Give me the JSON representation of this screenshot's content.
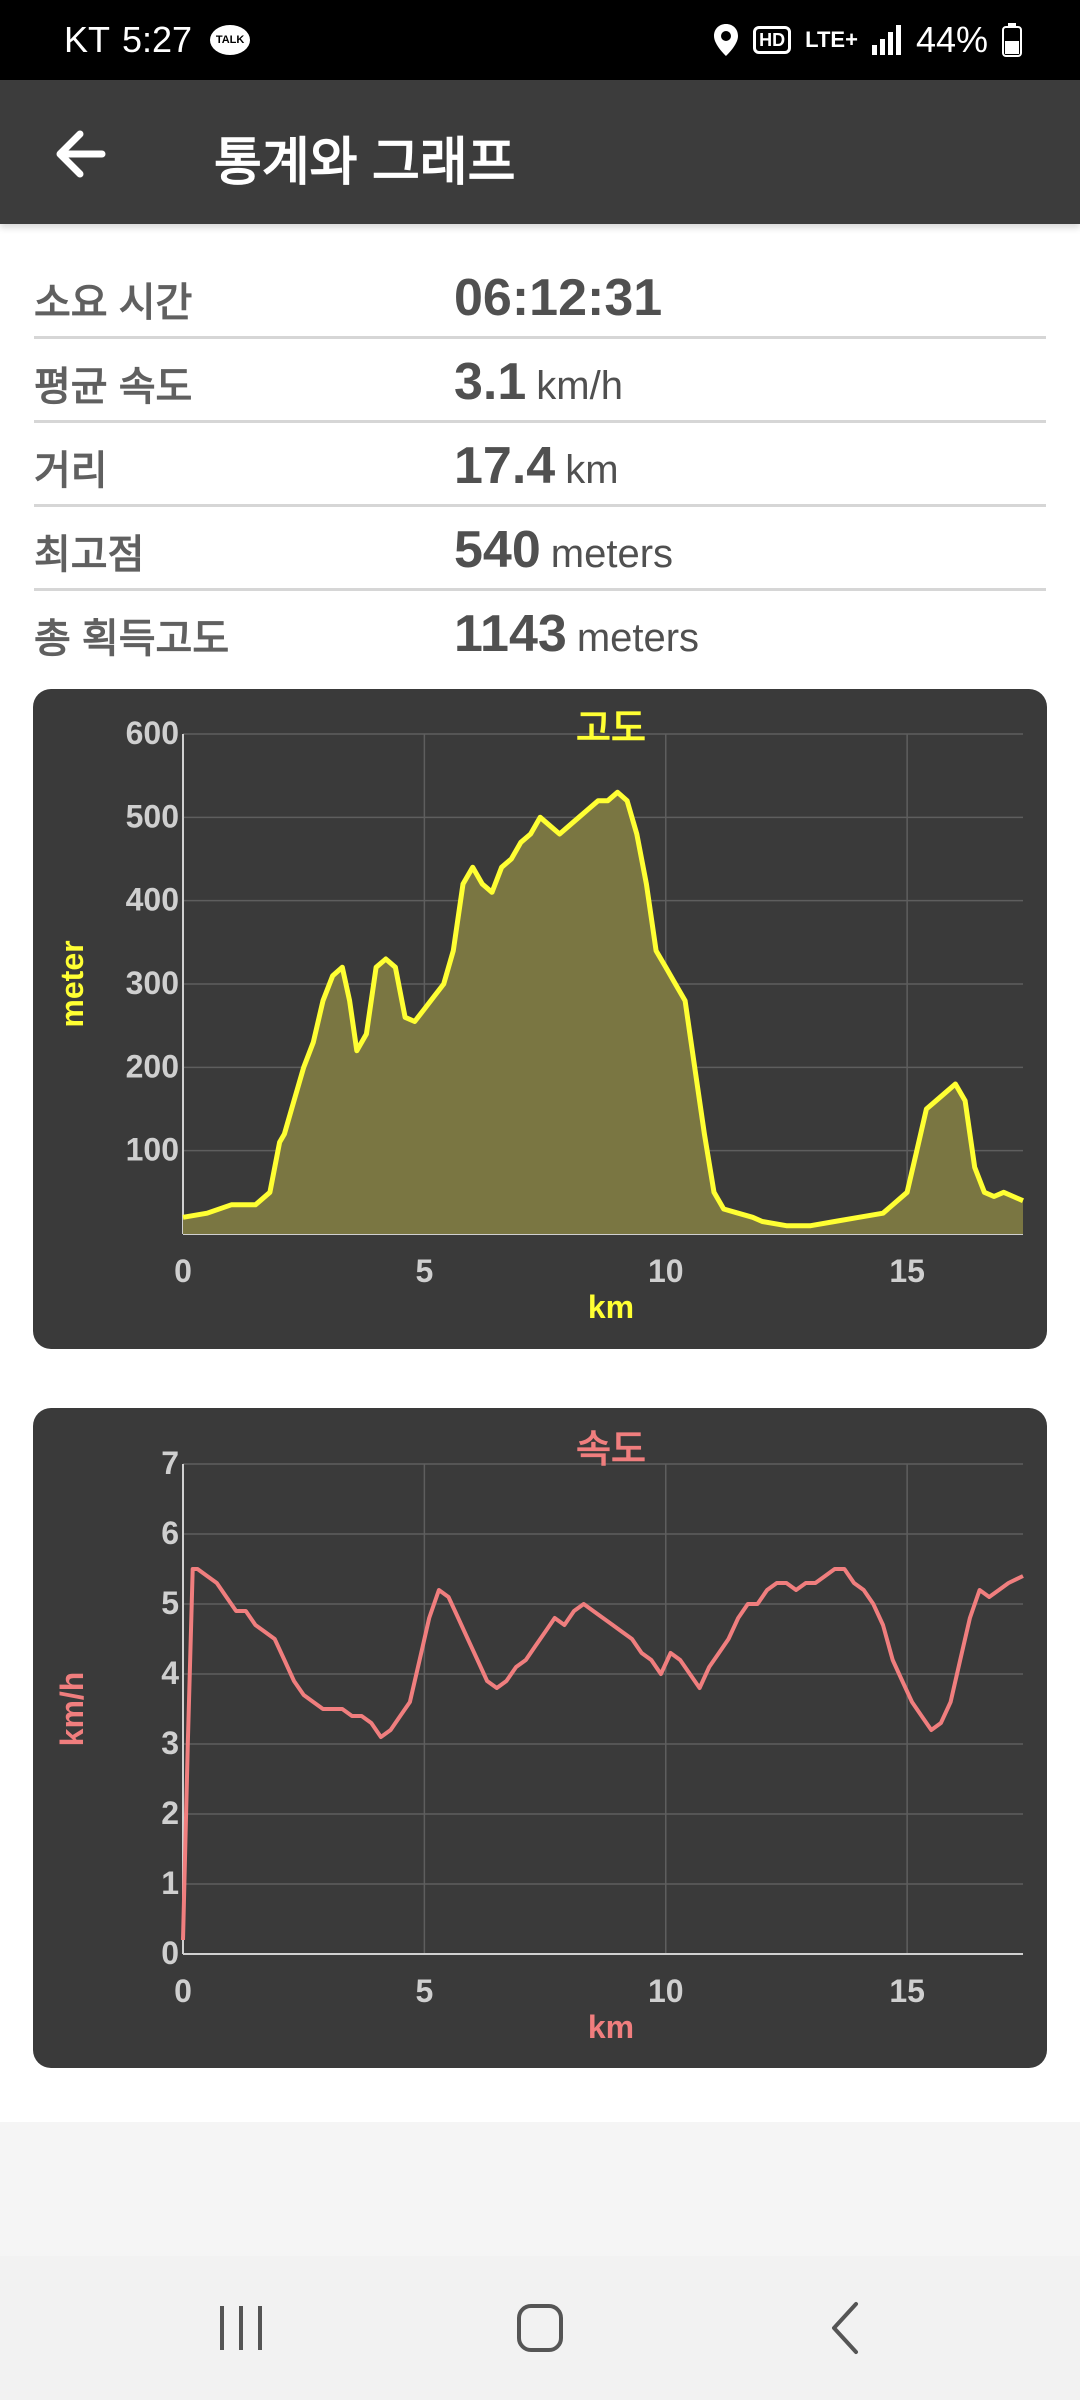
{
  "status": {
    "carrier": "KT",
    "time": "5:27",
    "talk": "TALK",
    "hd": "HD",
    "network": "LTE+",
    "battery": "44%"
  },
  "app_bar": {
    "title": "통계와 그래프"
  },
  "stats": [
    {
      "label": "소요 시간",
      "value": "06:12:31",
      "unit": ""
    },
    {
      "label": "평균 속도",
      "value": "3.1",
      "unit": "km/h"
    },
    {
      "label": "거리",
      "value": "17.4",
      "unit": "km"
    },
    {
      "label": "최고점",
      "value": "540",
      "unit": "meters"
    },
    {
      "label": "총 획득고도",
      "value": "1143",
      "unit": "meters"
    }
  ],
  "colors": {
    "elevation": "#ffff33",
    "speed": "#f07e7e",
    "card": "#3a3a3a",
    "appbar": "#3c3c3c"
  },
  "chart_data": [
    {
      "type": "area",
      "title": "고도",
      "xlabel": "km",
      "ylabel": "meter",
      "xlim": [
        0,
        17.4
      ],
      "ylim": [
        0,
        600
      ],
      "xticks": [
        0,
        5,
        10,
        15
      ],
      "yticks": [
        100,
        200,
        300,
        400,
        500,
        600
      ],
      "grid": true,
      "x": [
        0,
        0.5,
        1,
        1.5,
        1.8,
        2,
        2.1,
        2.3,
        2.5,
        2.7,
        2.9,
        3.1,
        3.3,
        3.45,
        3.6,
        3.8,
        4.0,
        4.2,
        4.4,
        4.6,
        4.8,
        5.0,
        5.2,
        5.4,
        5.6,
        5.8,
        6.0,
        6.2,
        6.4,
        6.6,
        6.8,
        7.0,
        7.2,
        7.4,
        7.6,
        7.8,
        8.0,
        8.2,
        8.4,
        8.6,
        8.8,
        9.0,
        9.2,
        9.4,
        9.6,
        9.8,
        10.0,
        10.2,
        10.4,
        10.6,
        10.8,
        11.0,
        11.2,
        11.5,
        11.8,
        12.0,
        12.5,
        13.0,
        13.5,
        14.0,
        14.5,
        15.0,
        15.2,
        15.4,
        15.6,
        15.8,
        16.0,
        16.2,
        16.4,
        16.6,
        16.8,
        17.0,
        17.2,
        17.4
      ],
      "y": [
        20,
        25,
        35,
        35,
        50,
        110,
        120,
        160,
        200,
        230,
        280,
        310,
        320,
        280,
        220,
        240,
        320,
        330,
        320,
        260,
        255,
        270,
        285,
        300,
        340,
        420,
        440,
        420,
        410,
        440,
        450,
        470,
        480,
        500,
        490,
        480,
        490,
        500,
        510,
        520,
        520,
        530,
        520,
        480,
        420,
        340,
        320,
        300,
        280,
        200,
        120,
        50,
        30,
        25,
        20,
        15,
        10,
        10,
        15,
        20,
        25,
        50,
        100,
        150,
        160,
        170,
        180,
        160,
        80,
        50,
        45,
        50,
        45,
        40
      ]
    },
    {
      "type": "line",
      "title": "속도",
      "xlabel": "km",
      "ylabel": "km/h",
      "xlim": [
        0,
        17.4
      ],
      "ylim": [
        0,
        7
      ],
      "xticks": [
        0,
        5,
        10,
        15
      ],
      "yticks": [
        0,
        1,
        2,
        3,
        4,
        5,
        6,
        7
      ],
      "grid": true,
      "x": [
        0,
        0.1,
        0.2,
        0.3,
        0.5,
        0.7,
        0.9,
        1.1,
        1.3,
        1.5,
        1.7,
        1.9,
        2.1,
        2.3,
        2.5,
        2.7,
        2.9,
        3.1,
        3.3,
        3.5,
        3.7,
        3.9,
        4.1,
        4.3,
        4.5,
        4.7,
        4.9,
        5.1,
        5.3,
        5.5,
        5.7,
        5.9,
        6.1,
        6.3,
        6.5,
        6.7,
        6.9,
        7.1,
        7.3,
        7.5,
        7.7,
        7.9,
        8.1,
        8.3,
        8.5,
        8.7,
        8.9,
        9.1,
        9.3,
        9.5,
        9.7,
        9.9,
        10.1,
        10.3,
        10.5,
        10.7,
        10.9,
        11.1,
        11.3,
        11.5,
        11.7,
        11.9,
        12.1,
        12.3,
        12.5,
        12.7,
        12.9,
        13.1,
        13.3,
        13.5,
        13.7,
        13.9,
        14.1,
        14.3,
        14.5,
        14.7,
        14.9,
        15.1,
        15.3,
        15.5,
        15.7,
        15.9,
        16.1,
        16.3,
        16.5,
        16.7,
        16.9,
        17.1,
        17.4
      ],
      "y": [
        0.2,
        3.0,
        5.5,
        5.5,
        5.4,
        5.3,
        5.1,
        4.9,
        4.9,
        4.7,
        4.6,
        4.5,
        4.2,
        3.9,
        3.7,
        3.6,
        3.5,
        3.5,
        3.5,
        3.4,
        3.4,
        3.3,
        3.1,
        3.2,
        3.4,
        3.6,
        4.2,
        4.8,
        5.2,
        5.1,
        4.8,
        4.5,
        4.2,
        3.9,
        3.8,
        3.9,
        4.1,
        4.2,
        4.4,
        4.6,
        4.8,
        4.7,
        4.9,
        5.0,
        4.9,
        4.8,
        4.7,
        4.6,
        4.5,
        4.3,
        4.2,
        4.0,
        4.3,
        4.2,
        4.0,
        3.8,
        4.1,
        4.3,
        4.5,
        4.8,
        5.0,
        5.0,
        5.2,
        5.3,
        5.3,
        5.2,
        5.3,
        5.3,
        5.4,
        5.5,
        5.5,
        5.3,
        5.2,
        5.0,
        4.7,
        4.2,
        3.9,
        3.6,
        3.4,
        3.2,
        3.3,
        3.6,
        4.2,
        4.8,
        5.2,
        5.1,
        5.2,
        5.3,
        5.4
      ]
    }
  ]
}
